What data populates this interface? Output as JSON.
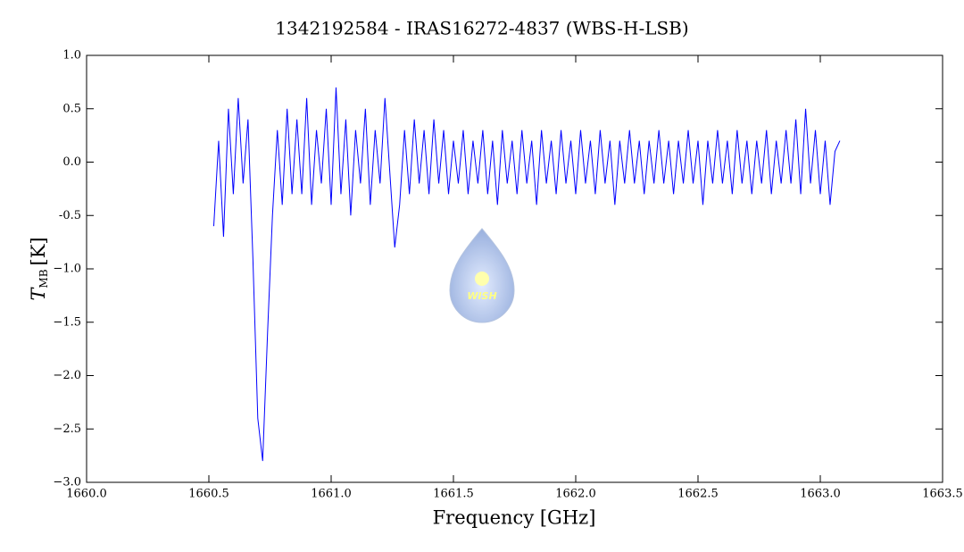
{
  "chart_data": {
    "type": "line",
    "title": "1342192584 - IRAS16272-4837 (WBS-H-LSB)",
    "x_label": "Frequency [GHz]",
    "y_label": {
      "symbol": "T",
      "subscript": "MB",
      "unit": "[K]"
    },
    "logo_text": "WISH",
    "xlim": [
      1660.0,
      1663.5
    ],
    "xticks": [
      {
        "value": 1660.0,
        "label": "1660.0"
      },
      1660.5,
      {
        "value": 1661.0,
        "label": "1661.0"
      },
      1661.5,
      {
        "value": 1662.0,
        "label": "1662.0"
      },
      1662.5,
      {
        "value": 1663.0,
        "label": "1663.0"
      },
      1663.5
    ],
    "ylim": [
      -3.0,
      1.0
    ],
    "yticks": [
      {
        "value": 1.0,
        "label": "1.0"
      },
      0.5,
      {
        "value": 0.0,
        "label": "0.0"
      },
      -0.5,
      {
        "value": -1.0,
        "label": "−1.0"
      },
      {
        "value": -1.5,
        "label": "−1.5"
      },
      {
        "value": -2.0,
        "label": "−2.0"
      },
      {
        "value": -2.5,
        "label": "−2.5"
      },
      {
        "value": -3.0,
        "label": "−3.0"
      }
    ],
    "series": [
      {
        "color": "#0000ff",
        "x": [
          1660.52,
          1660.54,
          1660.56,
          1660.58,
          1660.6,
          1660.62,
          1660.64,
          1660.66,
          1660.68,
          1660.7,
          1660.72,
          1660.74,
          1660.76,
          1660.78,
          1660.8,
          1660.82,
          1660.84,
          1660.86,
          1660.88,
          1660.9,
          1660.92,
          1660.94,
          1660.96,
          1660.98,
          1661.0,
          1661.02,
          1661.04,
          1661.06,
          1661.08,
          1661.1,
          1661.12,
          1661.14,
          1661.16,
          1661.18,
          1661.2,
          1661.22,
          1661.24,
          1661.26,
          1661.28,
          1661.3,
          1661.32,
          1661.34,
          1661.36,
          1661.38,
          1661.4,
          1661.42,
          1661.44,
          1661.46,
          1661.48,
          1661.5,
          1661.52,
          1661.54,
          1661.56,
          1661.58,
          1661.6,
          1661.62,
          1661.64,
          1661.66,
          1661.68,
          1661.7,
          1661.72,
          1661.74,
          1661.76,
          1661.78,
          1661.8,
          1661.82,
          1661.84,
          1661.86,
          1661.88,
          1661.9,
          1661.92,
          1661.94,
          1661.96,
          1661.98,
          1662.0,
          1662.02,
          1662.04,
          1662.06,
          1662.08,
          1662.1,
          1662.12,
          1662.14,
          1662.16,
          1662.18,
          1662.2,
          1662.22,
          1662.24,
          1662.26,
          1662.28,
          1662.3,
          1662.32,
          1662.34,
          1662.36,
          1662.38,
          1662.4,
          1662.42,
          1662.44,
          1662.46,
          1662.48,
          1662.5,
          1662.52,
          1662.54,
          1662.56,
          1662.58,
          1662.6,
          1662.62,
          1662.64,
          1662.66,
          1662.68,
          1662.7,
          1662.72,
          1662.74,
          1662.76,
          1662.78,
          1662.8,
          1662.82,
          1662.84,
          1662.86,
          1662.88,
          1662.9,
          1662.92,
          1662.94,
          1662.96,
          1662.98,
          1663.0,
          1663.02,
          1663.04,
          1663.06,
          1663.08
        ],
        "values": [
          -0.6,
          0.2,
          -0.7,
          0.5,
          -0.3,
          0.6,
          -0.2,
          0.4,
          -0.9,
          -2.4,
          -2.8,
          -1.6,
          -0.5,
          0.3,
          -0.4,
          0.5,
          -0.3,
          0.4,
          -0.3,
          0.6,
          -0.4,
          0.3,
          -0.2,
          0.5,
          -0.4,
          0.7,
          -0.3,
          0.4,
          -0.5,
          0.3,
          -0.2,
          0.5,
          -0.4,
          0.3,
          -0.2,
          0.6,
          -0.1,
          -0.8,
          -0.4,
          0.3,
          -0.3,
          0.4,
          -0.2,
          0.3,
          -0.3,
          0.4,
          -0.2,
          0.3,
          -0.3,
          0.2,
          -0.2,
          0.3,
          -0.3,
          0.2,
          -0.2,
          0.3,
          -0.3,
          0.2,
          -0.4,
          0.3,
          -0.2,
          0.2,
          -0.3,
          0.3,
          -0.2,
          0.2,
          -0.4,
          0.3,
          -0.2,
          0.2,
          -0.3,
          0.3,
          -0.2,
          0.2,
          -0.3,
          0.3,
          -0.2,
          0.2,
          -0.3,
          0.3,
          -0.2,
          0.2,
          -0.4,
          0.2,
          -0.2,
          0.3,
          -0.2,
          0.2,
          -0.3,
          0.2,
          -0.2,
          0.3,
          -0.2,
          0.2,
          -0.3,
          0.2,
          -0.2,
          0.3,
          -0.2,
          0.2,
          -0.4,
          0.2,
          -0.2,
          0.3,
          -0.2,
          0.2,
          -0.3,
          0.3,
          -0.2,
          0.2,
          -0.3,
          0.2,
          -0.2,
          0.3,
          -0.3,
          0.2,
          -0.2,
          0.3,
          -0.2,
          0.4,
          -0.3,
          0.5,
          -0.2,
          0.3,
          -0.3,
          0.2,
          -0.4,
          0.1,
          0.2
        ]
      }
    ]
  }
}
